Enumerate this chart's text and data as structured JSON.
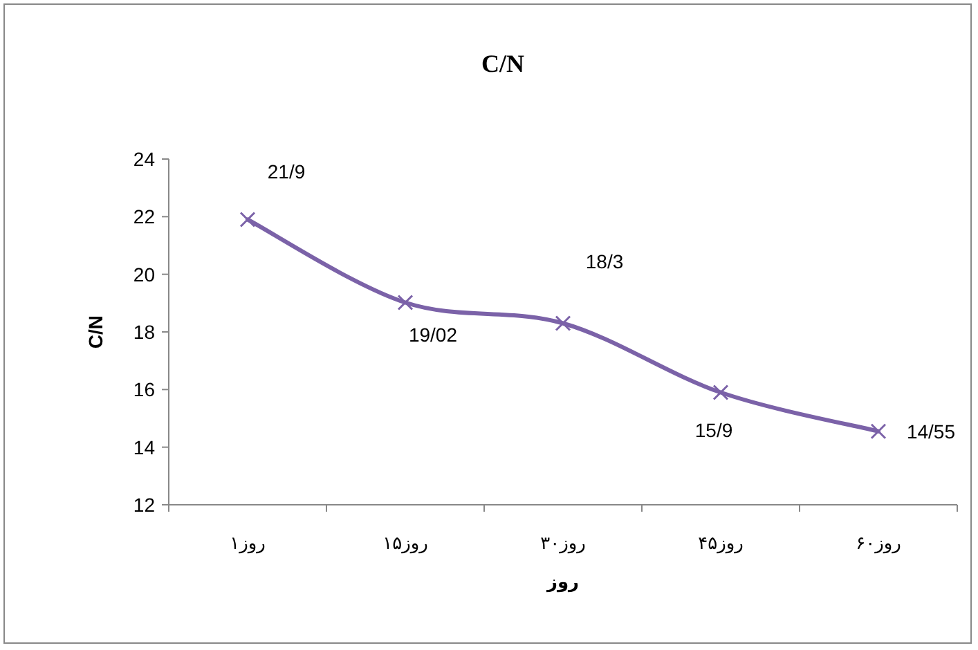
{
  "chart_data": {
    "type": "line",
    "title": "C/N",
    "xlabel": "روز",
    "ylabel": "C/N",
    "categories": [
      "روز۱",
      "روز۱۵",
      "روز۳۰",
      "روز۴۵",
      "روز۶۰"
    ],
    "series": [
      {
        "color": "#7b62a8",
        "values": [
          21.9,
          19.02,
          18.3,
          15.9,
          14.55
        ],
        "value_labels": [
          "21/9",
          "19/02",
          "18/3",
          "15/9",
          "14/55"
        ]
      }
    ],
    "ylim": [
      12,
      24
    ],
    "yticks": [
      12,
      14,
      16,
      18,
      20,
      22,
      24
    ],
    "marker": "cross",
    "line_style": "solid",
    "grid": false
  }
}
